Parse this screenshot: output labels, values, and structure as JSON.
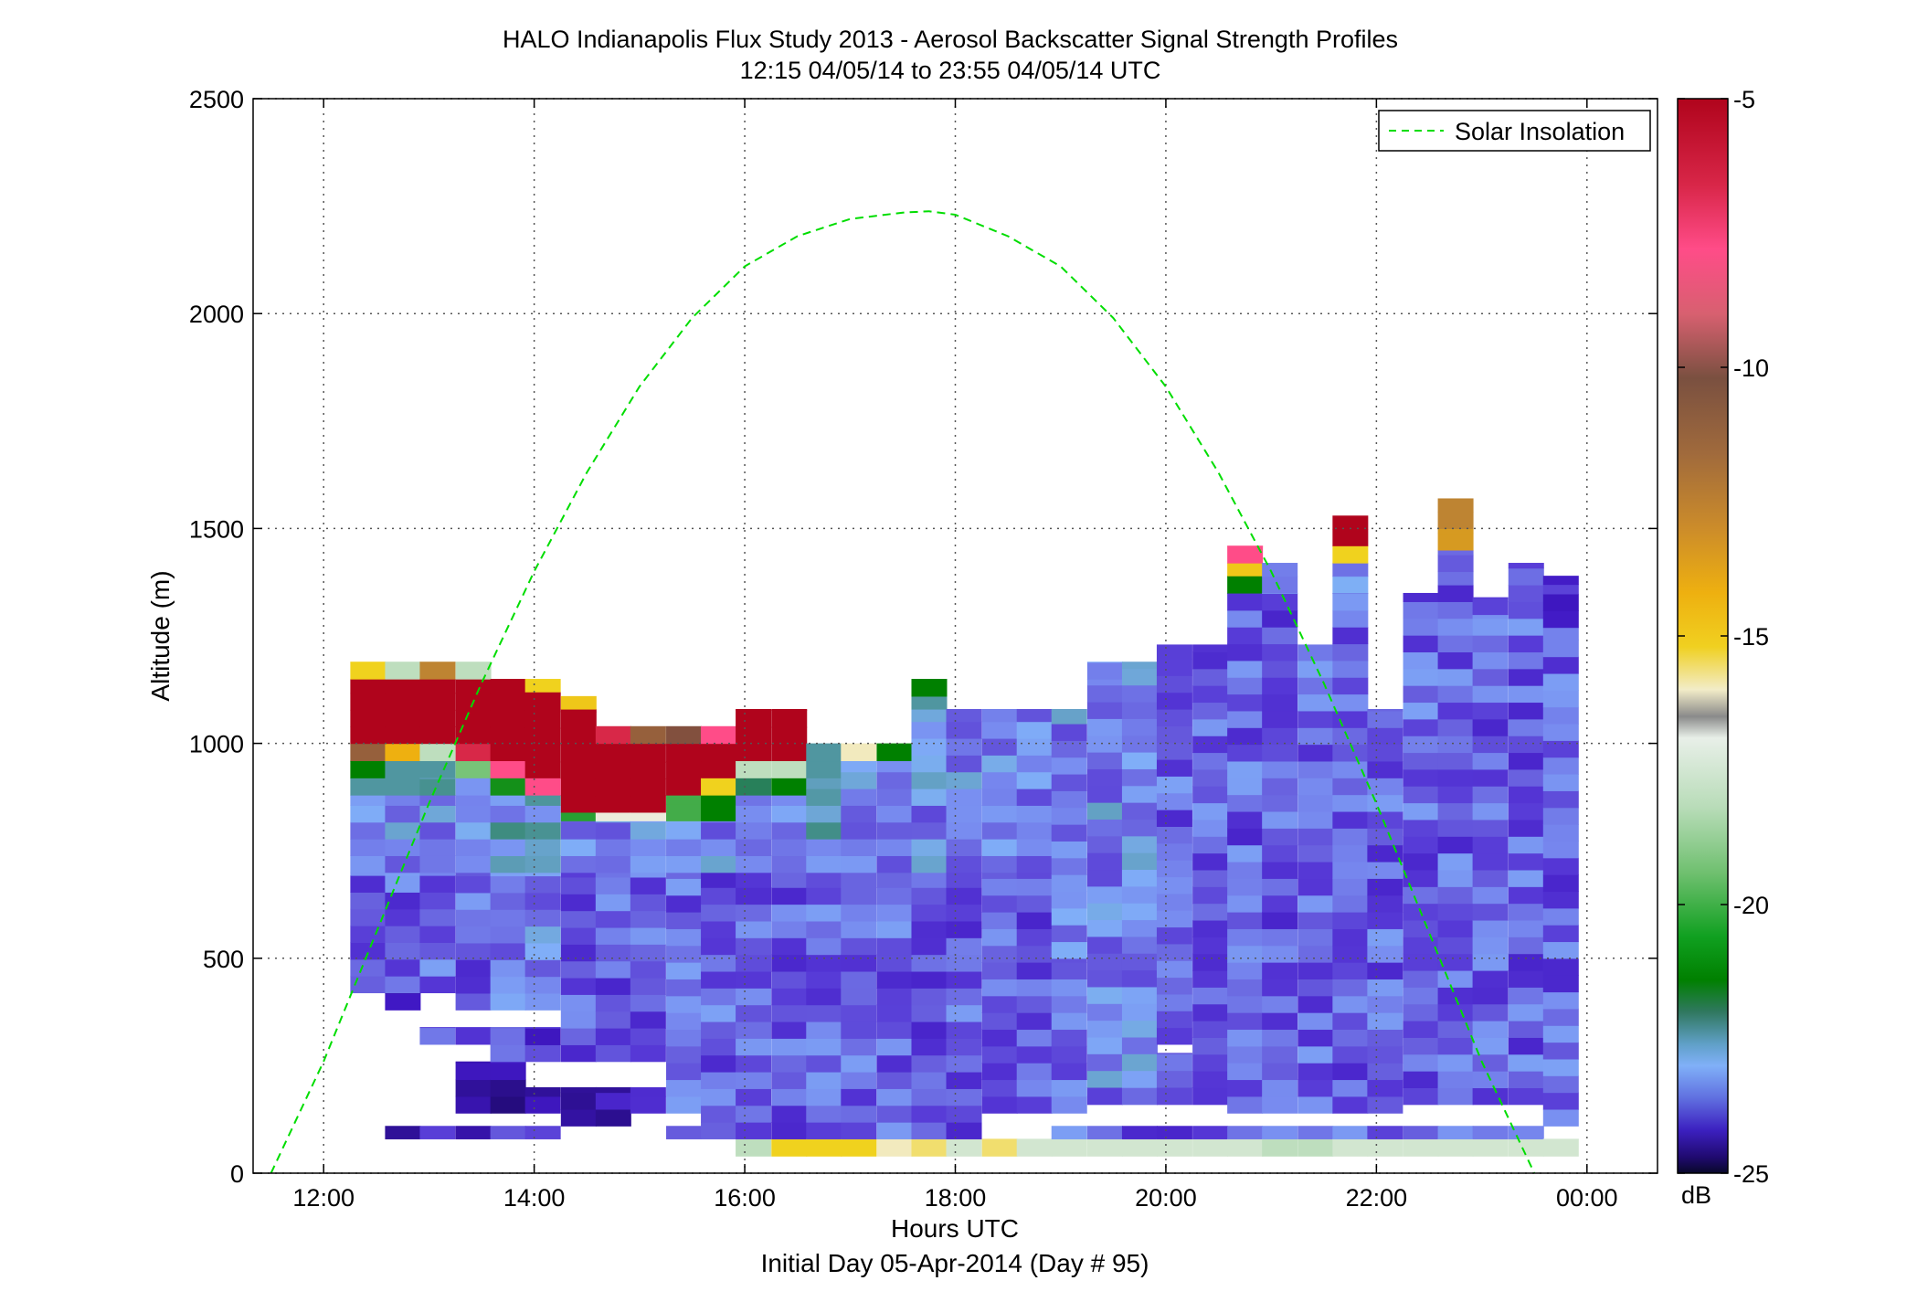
{
  "chart_data": {
    "type": "heatmap",
    "title": "HALO Indianapolis Flux Study 2013 - Aerosol Backscatter Signal Strength Profiles",
    "subtitle": "12:15 04/05/14 to 23:55 04/05/14  UTC",
    "xlabel": "Hours UTC",
    "xlabel2": "Initial Day 05-Apr-2014 (Day # 95)",
    "ylabel": "Altitude (m)",
    "xlim": [
      11.33,
      24.67
    ],
    "ylim": [
      0,
      2500
    ],
    "x_ticks": [
      12,
      14,
      16,
      18,
      20,
      22,
      24
    ],
    "x_tick_labels": [
      "12:00",
      "14:00",
      "16:00",
      "18:00",
      "20:00",
      "22:00",
      "00:00"
    ],
    "y_ticks": [
      0,
      500,
      1000,
      1500,
      2000,
      2500
    ],
    "y_tick_labels": [
      "0",
      "500",
      "1000",
      "1500",
      "2000",
      "2500"
    ],
    "grid": true,
    "legend": {
      "position": "top-right",
      "entries": [
        "Solar Insolation"
      ]
    },
    "colorbar": {
      "label": "dB",
      "range": [
        -25,
        -5
      ],
      "ticks": [
        -5,
        -10,
        -15,
        -20,
        -25
      ],
      "tick_labels": [
        "-5",
        "-10",
        "-15",
        "-20",
        "-25"
      ]
    },
    "time_step_hours": 0.3333,
    "range_gate_m": 39,
    "profiles": [
      {
        "t": 12.42,
        "bins": [
          [
            420,
            700,
            -22
          ],
          [
            700,
            880,
            -21.5
          ],
          [
            880,
            920,
            -20.5
          ],
          [
            920,
            960,
            -19.5
          ],
          [
            960,
            1000,
            -9
          ],
          [
            1000,
            1150,
            -5
          ],
          [
            1150,
            1190,
            -13.5
          ]
        ]
      },
      {
        "t": 12.75,
        "bins": [
          [
            80,
            110,
            -23
          ],
          [
            380,
            420,
            -23
          ],
          [
            420,
            700,
            -22
          ],
          [
            700,
            880,
            -21.5
          ],
          [
            880,
            920,
            -20.5
          ],
          [
            920,
            960,
            -20.5
          ],
          [
            960,
            1000,
            -12
          ],
          [
            1000,
            1150,
            -5
          ],
          [
            1150,
            1190,
            -16
          ]
        ]
      },
      {
        "t": 13.08,
        "bins": [
          [
            80,
            110,
            -22.5
          ],
          [
            300,
            340,
            -22
          ],
          [
            420,
            700,
            -22
          ],
          [
            700,
            880,
            -21.5
          ],
          [
            880,
            920,
            -21
          ],
          [
            920,
            960,
            -20.5
          ],
          [
            960,
            1000,
            -16
          ],
          [
            1000,
            1150,
            -5
          ],
          [
            1150,
            1190,
            -10
          ]
        ]
      },
      {
        "t": 13.42,
        "bins": [
          [
            80,
            110,
            -23
          ],
          [
            140,
            260,
            -23.5
          ],
          [
            300,
            340,
            -22
          ],
          [
            380,
            700,
            -22
          ],
          [
            700,
            880,
            -21.5
          ],
          [
            880,
            920,
            -21
          ],
          [
            920,
            960,
            -17
          ],
          [
            960,
            1000,
            -6
          ],
          [
            1000,
            1150,
            -5
          ],
          [
            1150,
            1190,
            -16
          ]
        ]
      },
      {
        "t": 13.75,
        "bins": [
          [
            80,
            110,
            -22.5
          ],
          [
            140,
            260,
            -23.5
          ],
          [
            260,
            340,
            -22.5
          ],
          [
            380,
            700,
            -21.5
          ],
          [
            700,
            880,
            -21
          ],
          [
            880,
            920,
            -19
          ],
          [
            920,
            960,
            -7
          ],
          [
            960,
            1150,
            -5
          ]
        ]
      },
      {
        "t": 14.08,
        "bins": [
          [
            80,
            110,
            -22.5
          ],
          [
            140,
            200,
            -23
          ],
          [
            260,
            340,
            -23
          ],
          [
            380,
            700,
            -21.5
          ],
          [
            700,
            880,
            -21
          ],
          [
            880,
            920,
            -7
          ],
          [
            920,
            1120,
            -5
          ],
          [
            1120,
            1150,
            -13.5
          ]
        ]
      },
      {
        "t": 14.42,
        "bins": [
          [
            110,
            200,
            -23
          ],
          [
            260,
            700,
            -22
          ],
          [
            700,
            820,
            -21.5
          ],
          [
            820,
            840,
            -18.5
          ],
          [
            840,
            1080,
            -5
          ],
          [
            1080,
            1110,
            -13
          ]
        ]
      },
      {
        "t": 14.75,
        "bins": [
          [
            110,
            200,
            -23
          ],
          [
            260,
            700,
            -22
          ],
          [
            700,
            820,
            -21.5
          ],
          [
            820,
            840,
            -15
          ],
          [
            840,
            1000,
            -5
          ],
          [
            1000,
            1040,
            -6
          ]
        ]
      },
      {
        "t": 15.08,
        "bins": [
          [
            140,
            200,
            -22
          ],
          [
            260,
            700,
            -22
          ],
          [
            700,
            820,
            -21.5
          ],
          [
            820,
            840,
            -15
          ],
          [
            840,
            1000,
            -5
          ],
          [
            1000,
            1040,
            -9
          ]
        ]
      },
      {
        "t": 15.42,
        "bins": [
          [
            80,
            110,
            -22
          ],
          [
            140,
            700,
            -22
          ],
          [
            700,
            820,
            -21.5
          ],
          [
            820,
            880,
            -18
          ],
          [
            880,
            1000,
            -5
          ],
          [
            1000,
            1040,
            -8.5
          ]
        ]
      },
      {
        "t": 15.75,
        "bins": [
          [
            80,
            700,
            -22
          ],
          [
            700,
            820,
            -21.5
          ],
          [
            820,
            880,
            -19.5
          ],
          [
            880,
            920,
            -13.5
          ],
          [
            920,
            1000,
            -5
          ],
          [
            1000,
            1040,
            -7
          ]
        ]
      },
      {
        "t": 16.08,
        "bins": [
          [
            40,
            80,
            -16
          ],
          [
            80,
            700,
            -22
          ],
          [
            700,
            880,
            -21.5
          ],
          [
            880,
            920,
            -20
          ],
          [
            920,
            960,
            -16
          ],
          [
            960,
            1080,
            -5
          ]
        ]
      },
      {
        "t": 16.42,
        "bins": [
          [
            40,
            80,
            -13.5
          ],
          [
            80,
            700,
            -22
          ],
          [
            700,
            880,
            -21.5
          ],
          [
            880,
            920,
            -19.5
          ],
          [
            920,
            960,
            -16
          ],
          [
            960,
            1080,
            -5
          ]
        ]
      },
      {
        "t": 16.75,
        "bins": [
          [
            40,
            80,
            -13.5
          ],
          [
            80,
            700,
            -22
          ],
          [
            700,
            920,
            -21
          ],
          [
            920,
            960,
            -20.5
          ],
          [
            960,
            1000,
            -20.5
          ]
        ]
      },
      {
        "t": 17.08,
        "bins": [
          [
            40,
            80,
            -13.5
          ],
          [
            80,
            700,
            -22
          ],
          [
            700,
            960,
            -21.5
          ],
          [
            960,
            1000,
            -14.5
          ]
        ]
      },
      {
        "t": 17.42,
        "bins": [
          [
            40,
            80,
            -14.5
          ],
          [
            80,
            700,
            -22
          ],
          [
            700,
            960,
            -21.5
          ],
          [
            960,
            1000,
            -19.5
          ]
        ]
      },
      {
        "t": 17.75,
        "bins": [
          [
            40,
            80,
            -14
          ],
          [
            80,
            700,
            -22
          ],
          [
            700,
            1080,
            -21.5
          ],
          [
            1080,
            1110,
            -20.5
          ],
          [
            1110,
            1150,
            -19.5
          ]
        ]
      },
      {
        "t": 18.08,
        "bins": [
          [
            40,
            80,
            -15.5
          ],
          [
            80,
            700,
            -22
          ],
          [
            700,
            1080,
            -21.5
          ]
        ]
      },
      {
        "t": 18.42,
        "bins": [
          [
            40,
            80,
            -14
          ],
          [
            140,
            700,
            -22
          ],
          [
            700,
            1080,
            -21.5
          ]
        ]
      },
      {
        "t": 18.75,
        "bins": [
          [
            40,
            80,
            -15.5
          ],
          [
            140,
            700,
            -22
          ],
          [
            700,
            1080,
            -21.5
          ]
        ]
      },
      {
        "t": 19.08,
        "bins": [
          [
            40,
            80,
            -15.5
          ],
          [
            80,
            110,
            -22
          ],
          [
            140,
            500,
            -22
          ],
          [
            500,
            1080,
            -21.5
          ]
        ]
      },
      {
        "t": 19.42,
        "bins": [
          [
            40,
            80,
            -15.5
          ],
          [
            80,
            110,
            -22
          ],
          [
            160,
            200,
            -22
          ],
          [
            200,
            1150,
            -21.5
          ],
          [
            1150,
            1190,
            -21
          ]
        ]
      },
      {
        "t": 19.75,
        "bins": [
          [
            40,
            80,
            -15.5
          ],
          [
            80,
            110,
            -22
          ],
          [
            160,
            200,
            -22
          ],
          [
            200,
            1190,
            -21.5
          ]
        ]
      },
      {
        "t": 20.08,
        "bins": [
          [
            40,
            80,
            -15.5
          ],
          [
            80,
            110,
            -22
          ],
          [
            160,
            200,
            -22
          ],
          [
            200,
            280,
            -22.5
          ],
          [
            300,
            1230,
            -22
          ]
        ]
      },
      {
        "t": 20.42,
        "bins": [
          [
            40,
            80,
            -15.5
          ],
          [
            80,
            110,
            -22
          ],
          [
            160,
            1230,
            -22
          ]
        ]
      },
      {
        "t": 20.75,
        "bins": [
          [
            40,
            80,
            -15.5
          ],
          [
            80,
            110,
            -22
          ],
          [
            140,
            1350,
            -22
          ],
          [
            1350,
            1390,
            -19.5
          ],
          [
            1390,
            1420,
            -13
          ],
          [
            1420,
            1460,
            -7
          ]
        ]
      },
      {
        "t": 21.08,
        "bins": [
          [
            40,
            80,
            -16
          ],
          [
            80,
            110,
            -22
          ],
          [
            140,
            1350,
            -22
          ],
          [
            1350,
            1420,
            -21.5
          ]
        ]
      },
      {
        "t": 21.42,
        "bins": [
          [
            40,
            80,
            -16
          ],
          [
            80,
            110,
            -22
          ],
          [
            140,
            1230,
            -22
          ]
        ]
      },
      {
        "t": 21.75,
        "bins": [
          [
            40,
            80,
            -15.5
          ],
          [
            80,
            110,
            -22
          ],
          [
            140,
            1350,
            -22
          ],
          [
            1350,
            1390,
            -21.5
          ],
          [
            1390,
            1420,
            -22
          ],
          [
            1420,
            1460,
            -13.5
          ],
          [
            1460,
            1530,
            -5
          ]
        ]
      },
      {
        "t": 22.08,
        "bins": [
          [
            40,
            80,
            -15.5
          ],
          [
            80,
            110,
            -22
          ],
          [
            140,
            1080,
            -22
          ]
        ]
      },
      {
        "t": 22.42,
        "bins": [
          [
            40,
            80,
            -15.5
          ],
          [
            80,
            110,
            -22
          ],
          [
            160,
            1350,
            -22
          ]
        ]
      },
      {
        "t": 22.75,
        "bins": [
          [
            40,
            80,
            -15.5
          ],
          [
            80,
            110,
            -22
          ],
          [
            160,
            1400,
            -22
          ],
          [
            1400,
            1450,
            -21.5
          ],
          [
            1450,
            1500,
            -11
          ],
          [
            1500,
            1570,
            -10
          ]
        ]
      },
      {
        "t": 23.08,
        "bins": [
          [
            40,
            80,
            -15.5
          ],
          [
            80,
            110,
            -22
          ],
          [
            160,
            1300,
            -22
          ],
          [
            1300,
            1340,
            -23
          ]
        ]
      },
      {
        "t": 23.42,
        "bins": [
          [
            40,
            80,
            -15.5
          ],
          [
            80,
            110,
            -22
          ],
          [
            160,
            1330,
            -22
          ],
          [
            1330,
            1420,
            -22.5
          ]
        ]
      },
      {
        "t": 23.75,
        "bins": [
          [
            40,
            80,
            -15.5
          ],
          [
            110,
            1270,
            -22
          ],
          [
            1270,
            1370,
            -22.5
          ],
          [
            1370,
            1390,
            -23
          ]
        ]
      }
    ],
    "series": [
      {
        "name": "Solar Insolation",
        "style": "dashed",
        "color": "#00dd00",
        "x": [
          11.5,
          12.0,
          12.5,
          13.0,
          13.5,
          14.0,
          14.5,
          15.0,
          15.5,
          16.0,
          16.5,
          17.0,
          17.5,
          17.75,
          18.0,
          18.5,
          19.0,
          19.5,
          20.0,
          20.5,
          21.0,
          21.5,
          22.0,
          22.5,
          23.0,
          23.5,
          24.0,
          24.15
        ],
        "y": [
          0,
          260,
          560,
          860,
          1140,
          1400,
          1630,
          1830,
          1990,
          2110,
          2180,
          2220,
          2235,
          2238,
          2230,
          2180,
          2110,
          1990,
          1830,
          1630,
          1400,
          1140,
          860,
          560,
          260,
          0,
          -260,
          -340
        ]
      }
    ]
  }
}
